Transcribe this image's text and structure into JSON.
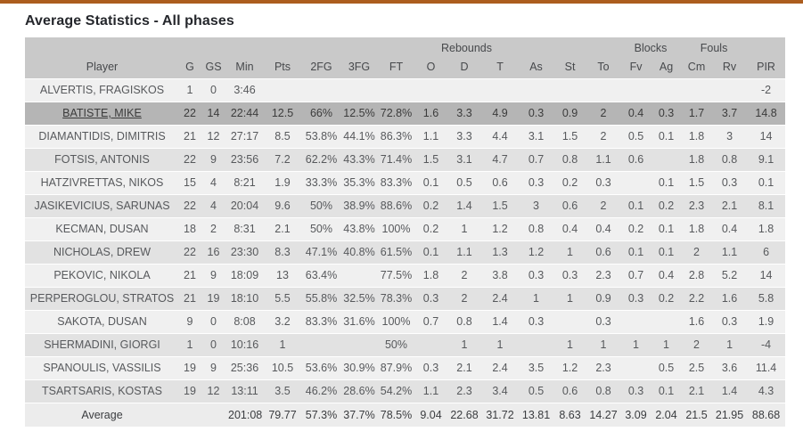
{
  "accent_color": "#AC5D1E",
  "title": "Average Statistics - All phases",
  "table": {
    "group_headers": [
      {
        "label": "",
        "span": 8
      },
      {
        "label": "Rebounds",
        "span": 3
      },
      {
        "label": "",
        "span": 1
      },
      {
        "label": "",
        "span": 1
      },
      {
        "label": "",
        "span": 1
      },
      {
        "label": "Blocks",
        "span": 2
      },
      {
        "label": "Fouls",
        "span": 2
      },
      {
        "label": "",
        "span": 1
      }
    ],
    "columns": [
      "Player",
      "G",
      "GS",
      "Min",
      "Pts",
      "2FG",
      "3FG",
      "FT",
      "O",
      "D",
      "T",
      "As",
      "St",
      "To",
      "Fv",
      "Ag",
      "Cm",
      "Rv",
      "PIR"
    ],
    "rows": [
      {
        "player": "ALVERTIS, FRAGISKOS",
        "highlighted": false,
        "values": [
          "1",
          "0",
          "3:46",
          "",
          "",
          "",
          "",
          "",
          "",
          "",
          "",
          "",
          "",
          "",
          "",
          "",
          "",
          "-2"
        ]
      },
      {
        "player": "BATISTE, MIKE",
        "highlighted": true,
        "values": [
          "22",
          "14",
          "22:44",
          "12.5",
          "66%",
          "12.5%",
          "72.8%",
          "1.6",
          "3.3",
          "4.9",
          "0.3",
          "0.9",
          "2",
          "0.4",
          "0.3",
          "1.7",
          "3.7",
          "14.8"
        ]
      },
      {
        "player": "DIAMANTIDIS, DIMITRIS",
        "highlighted": false,
        "values": [
          "21",
          "12",
          "27:17",
          "8.5",
          "53.8%",
          "44.1%",
          "86.3%",
          "1.1",
          "3.3",
          "4.4",
          "3.1",
          "1.5",
          "2",
          "0.5",
          "0.1",
          "1.8",
          "3",
          "14"
        ]
      },
      {
        "player": "FOTSIS, ANTONIS",
        "highlighted": false,
        "values": [
          "22",
          "9",
          "23:56",
          "7.2",
          "62.2%",
          "43.3%",
          "71.4%",
          "1.5",
          "3.1",
          "4.7",
          "0.7",
          "0.8",
          "1.1",
          "0.6",
          "",
          "1.8",
          "0.8",
          "9.1"
        ]
      },
      {
        "player": "HATZIVRETTAS, NIKOS",
        "highlighted": false,
        "values": [
          "15",
          "4",
          "8:21",
          "1.9",
          "33.3%",
          "35.3%",
          "83.3%",
          "0.1",
          "0.5",
          "0.6",
          "0.3",
          "0.2",
          "0.3",
          "",
          "0.1",
          "1.5",
          "0.3",
          "0.1"
        ]
      },
      {
        "player": "JASIKEVICIUS, SARUNAS",
        "highlighted": false,
        "values": [
          "22",
          "4",
          "20:04",
          "9.6",
          "50%",
          "38.9%",
          "88.6%",
          "0.2",
          "1.4",
          "1.5",
          "3",
          "0.6",
          "2",
          "0.1",
          "0.2",
          "2.3",
          "2.1",
          "8.1"
        ]
      },
      {
        "player": "KECMAN, DUSAN",
        "highlighted": false,
        "values": [
          "18",
          "2",
          "8:31",
          "2.1",
          "50%",
          "43.8%",
          "100%",
          "0.2",
          "1",
          "1.2",
          "0.8",
          "0.4",
          "0.4",
          "0.2",
          "0.1",
          "1.8",
          "0.4",
          "1.8"
        ]
      },
      {
        "player": "NICHOLAS, DREW",
        "highlighted": false,
        "values": [
          "22",
          "16",
          "23:30",
          "8.3",
          "47.1%",
          "40.8%",
          "61.5%",
          "0.1",
          "1.1",
          "1.3",
          "1.2",
          "1",
          "0.6",
          "0.1",
          "0.1",
          "2",
          "1.1",
          "6"
        ]
      },
      {
        "player": "PEKOVIC, NIKOLA",
        "highlighted": false,
        "values": [
          "21",
          "9",
          "18:09",
          "13",
          "63.4%",
          "",
          "77.5%",
          "1.8",
          "2",
          "3.8",
          "0.3",
          "0.3",
          "2.3",
          "0.7",
          "0.4",
          "2.8",
          "5.2",
          "14"
        ]
      },
      {
        "player": "PERPEROGLOU, STRATOS",
        "highlighted": false,
        "values": [
          "21",
          "19",
          "18:10",
          "5.5",
          "55.8%",
          "32.5%",
          "78.3%",
          "0.3",
          "2",
          "2.4",
          "1",
          "1",
          "0.9",
          "0.3",
          "0.2",
          "2.2",
          "1.6",
          "5.8"
        ]
      },
      {
        "player": "SAKOTA, DUSAN",
        "highlighted": false,
        "values": [
          "9",
          "0",
          "8:08",
          "3.2",
          "83.3%",
          "31.6%",
          "100%",
          "0.7",
          "0.8",
          "1.4",
          "0.3",
          "",
          "0.3",
          "",
          "",
          "1.6",
          "0.3",
          "1.9"
        ]
      },
      {
        "player": "SHERMADINI, GIORGI",
        "highlighted": false,
        "values": [
          "1",
          "0",
          "10:16",
          "1",
          "",
          "",
          "50%",
          "",
          "1",
          "1",
          "",
          "1",
          "1",
          "1",
          "1",
          "2",
          "1",
          "-4"
        ]
      },
      {
        "player": "SPANOULIS, VASSILIS",
        "highlighted": false,
        "values": [
          "19",
          "9",
          "25:36",
          "10.5",
          "53.6%",
          "30.9%",
          "87.9%",
          "0.3",
          "2.1",
          "2.4",
          "3.5",
          "1.2",
          "2.3",
          "",
          "0.5",
          "2.5",
          "3.6",
          "11.4"
        ]
      },
      {
        "player": "TSARTSARIS, KOSTAS",
        "highlighted": false,
        "values": [
          "19",
          "12",
          "13:11",
          "3.5",
          "46.2%",
          "28.6%",
          "54.2%",
          "1.1",
          "2.3",
          "3.4",
          "0.5",
          "0.6",
          "0.8",
          "0.3",
          "0.1",
          "2.1",
          "1.4",
          "4.3"
        ]
      }
    ],
    "footer": {
      "label": "Average",
      "values": [
        "",
        "",
        "201:08",
        "79.77",
        "57.3%",
        "37.7%",
        "78.5%",
        "9.04",
        "22.68",
        "31.72",
        "13.81",
        "8.63",
        "14.27",
        "3.09",
        "2.04",
        "21.5",
        "21.95",
        "88.68"
      ]
    }
  }
}
